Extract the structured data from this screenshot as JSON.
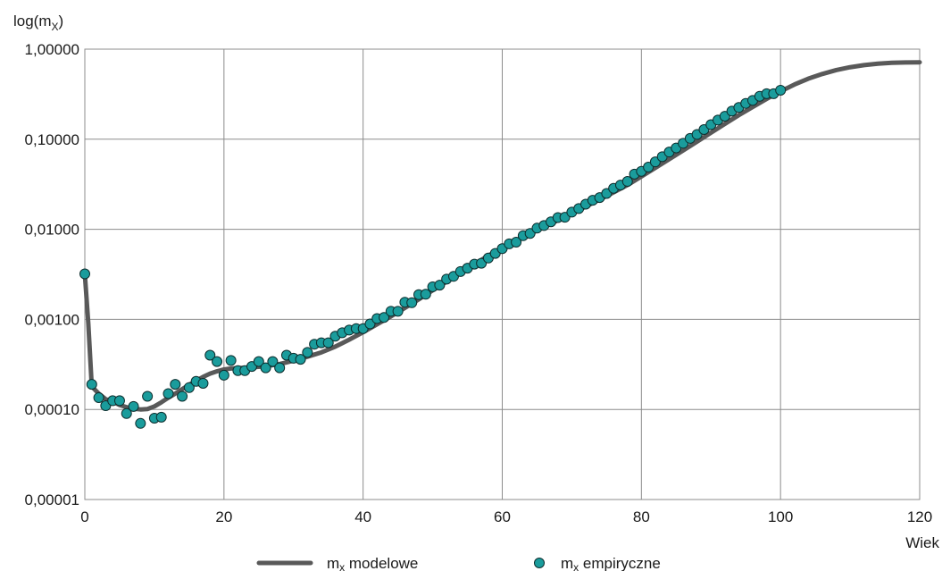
{
  "chart_data": {
    "type": "line",
    "title": "",
    "ylabel": "log(m",
    "ylabel_sub": "X",
    "ylabel_suffix": ")",
    "xlabel": "Wiek",
    "y_scale": "log",
    "ylim": [
      1e-05,
      1
    ],
    "xlim": [
      0,
      120
    ],
    "y_ticks": [
      {
        "value": 1e-05,
        "label": "0,00001"
      },
      {
        "value": 0.0001,
        "label": "0,00010"
      },
      {
        "value": 0.001,
        "label": "0,00100"
      },
      {
        "value": 0.01,
        "label": "0,01000"
      },
      {
        "value": 0.1,
        "label": "0,10000"
      },
      {
        "value": 1,
        "label": "1,00000"
      }
    ],
    "x_ticks": [
      {
        "value": 0,
        "label": "0"
      },
      {
        "value": 20,
        "label": "20"
      },
      {
        "value": 40,
        "label": "40"
      },
      {
        "value": 60,
        "label": "60"
      },
      {
        "value": 80,
        "label": "80"
      },
      {
        "value": 100,
        "label": "100"
      },
      {
        "value": 120,
        "label": "120"
      }
    ],
    "grid": true,
    "legend_position": "bottom",
    "series": [
      {
        "name": "m",
        "name_sub": "x",
        "name_suffix": " modelowe",
        "type": "line",
        "color": "#595959",
        "points": [
          [
            0,
            0.0032
          ],
          [
            0.5,
            0.0009
          ],
          [
            1,
            0.00018
          ],
          [
            2,
            0.00015
          ],
          [
            3,
            0.00013
          ],
          [
            4,
            0.000122
          ],
          [
            5,
            0.000112
          ],
          [
            6,
            0.000106
          ],
          [
            7,
            0.000102
          ],
          [
            8,
            0.0001
          ],
          [
            9,
            0.000101
          ],
          [
            10,
            0.000108
          ],
          [
            11,
            0.00012
          ],
          [
            12,
            0.000135
          ],
          [
            13,
            0.00015
          ],
          [
            14,
            0.000168
          ],
          [
            15,
            0.000188
          ],
          [
            16,
            0.000208
          ],
          [
            17,
            0.00023
          ],
          [
            18,
            0.00025
          ],
          [
            19,
            0.000265
          ],
          [
            20,
            0.000278
          ],
          [
            21,
            0.000285
          ],
          [
            22,
            0.000288
          ],
          [
            23,
            0.00029
          ],
          [
            24,
            0.000293
          ],
          [
            25,
            0.000297
          ],
          [
            26,
            0.000302
          ],
          [
            27,
            0.00031
          ],
          [
            28,
            0.00032
          ],
          [
            29,
            0.000333
          ],
          [
            30,
            0.000348
          ],
          [
            32,
            0.000385
          ],
          [
            34,
            0.00043
          ],
          [
            36,
            0.000498
          ],
          [
            38,
            0.000595
          ],
          [
            40,
            0.00072
          ],
          [
            42,
            0.00088
          ],
          [
            44,
            0.00108
          ],
          [
            46,
            0.00134
          ],
          [
            48,
            0.00167
          ],
          [
            50,
            0.0021
          ],
          [
            52,
            0.00262
          ],
          [
            54,
            0.0033
          ],
          [
            56,
            0.0041
          ],
          [
            58,
            0.0051
          ],
          [
            60,
            0.0062
          ],
          [
            62,
            0.0075
          ],
          [
            64,
            0.0089
          ],
          [
            66,
            0.0106
          ],
          [
            68,
            0.0126
          ],
          [
            70,
            0.015
          ],
          [
            72,
            0.0179
          ],
          [
            74,
            0.0214
          ],
          [
            76,
            0.0257
          ],
          [
            78,
            0.031
          ],
          [
            80,
            0.0386
          ],
          [
            82,
            0.048
          ],
          [
            84,
            0.06
          ],
          [
            86,
            0.075
          ],
          [
            88,
            0.094
          ],
          [
            90,
            0.118
          ],
          [
            92,
            0.148
          ],
          [
            94,
            0.185
          ],
          [
            96,
            0.228
          ],
          [
            98,
            0.28
          ],
          [
            100,
            0.34
          ],
          [
            102,
            0.405
          ],
          [
            104,
            0.47
          ],
          [
            106,
            0.53
          ],
          [
            108,
            0.585
          ],
          [
            110,
            0.63
          ],
          [
            112,
            0.665
          ],
          [
            114,
            0.69
          ],
          [
            116,
            0.705
          ],
          [
            118,
            0.712
          ],
          [
            120,
            0.715
          ]
        ]
      },
      {
        "name": "m",
        "name_sub": "x",
        "name_suffix": " empiryczne",
        "type": "scatter",
        "color": "#1a9c9c",
        "points": [
          [
            0,
            0.0032
          ],
          [
            1,
            0.00019
          ],
          [
            2,
            0.000135
          ],
          [
            3,
            0.00011
          ],
          [
            4,
            0.000125
          ],
          [
            5,
            0.000125
          ],
          [
            6,
            9e-05
          ],
          [
            7,
            0.000108
          ],
          [
            8,
            7e-05
          ],
          [
            9,
            0.00014
          ],
          [
            10,
            8e-05
          ],
          [
            11,
            8.2e-05
          ],
          [
            12,
            0.00015
          ],
          [
            13,
            0.00019
          ],
          [
            14,
            0.00014
          ],
          [
            15,
            0.000175
          ],
          [
            16,
            0.000205
          ],
          [
            17,
            0.000195
          ],
          [
            18,
            0.0004
          ],
          [
            19,
            0.00034
          ],
          [
            20,
            0.00024
          ],
          [
            21,
            0.00035
          ],
          [
            22,
            0.00027
          ],
          [
            23,
            0.00027
          ],
          [
            24,
            0.0003
          ],
          [
            25,
            0.00034
          ],
          [
            26,
            0.00029
          ],
          [
            27,
            0.00034
          ],
          [
            28,
            0.00029
          ],
          [
            29,
            0.0004
          ],
          [
            30,
            0.00037
          ],
          [
            31,
            0.00036
          ],
          [
            32,
            0.00043
          ],
          [
            33,
            0.00053
          ],
          [
            34,
            0.00055
          ],
          [
            35,
            0.00055
          ],
          [
            36,
            0.00065
          ],
          [
            37,
            0.00071
          ],
          [
            38,
            0.00076
          ],
          [
            39,
            0.00079
          ],
          [
            40,
            0.00079
          ],
          [
            41,
            0.00089
          ],
          [
            42,
            0.00102
          ],
          [
            43,
            0.00105
          ],
          [
            44,
            0.00123
          ],
          [
            45,
            0.00123
          ],
          [
            46,
            0.00155
          ],
          [
            47,
            0.00153
          ],
          [
            48,
            0.00188
          ],
          [
            49,
            0.0019
          ],
          [
            50,
            0.0023
          ],
          [
            51,
            0.0024
          ],
          [
            52,
            0.0028
          ],
          [
            53,
            0.003
          ],
          [
            54,
            0.0034
          ],
          [
            55,
            0.0037
          ],
          [
            56,
            0.0041
          ],
          [
            57,
            0.0042
          ],
          [
            58,
            0.0048
          ],
          [
            59,
            0.0054
          ],
          [
            60,
            0.0061
          ],
          [
            61,
            0.0069
          ],
          [
            62,
            0.0072
          ],
          [
            63,
            0.0085
          ],
          [
            64,
            0.009
          ],
          [
            65,
            0.0103
          ],
          [
            66,
            0.011
          ],
          [
            67,
            0.0121
          ],
          [
            68,
            0.0135
          ],
          [
            69,
            0.0136
          ],
          [
            70,
            0.0155
          ],
          [
            71,
            0.017
          ],
          [
            72,
            0.019
          ],
          [
            73,
            0.021
          ],
          [
            74,
            0.0225
          ],
          [
            75,
            0.025
          ],
          [
            76,
            0.0285
          ],
          [
            77,
            0.031
          ],
          [
            78,
            0.034
          ],
          [
            79,
            0.041
          ],
          [
            80,
            0.044
          ],
          [
            81,
            0.049
          ],
          [
            82,
            0.056
          ],
          [
            83,
            0.064
          ],
          [
            84,
            0.072
          ],
          [
            85,
            0.08
          ],
          [
            86,
            0.09
          ],
          [
            87,
            0.102
          ],
          [
            88,
            0.113
          ],
          [
            89,
            0.128
          ],
          [
            90,
            0.145
          ],
          [
            91,
            0.163
          ],
          [
            92,
            0.18
          ],
          [
            93,
            0.205
          ],
          [
            94,
            0.225
          ],
          [
            95,
            0.25
          ],
          [
            96,
            0.27
          ],
          [
            97,
            0.3
          ],
          [
            98,
            0.32
          ],
          [
            99,
            0.32
          ],
          [
            100,
            0.35
          ]
        ]
      }
    ]
  }
}
